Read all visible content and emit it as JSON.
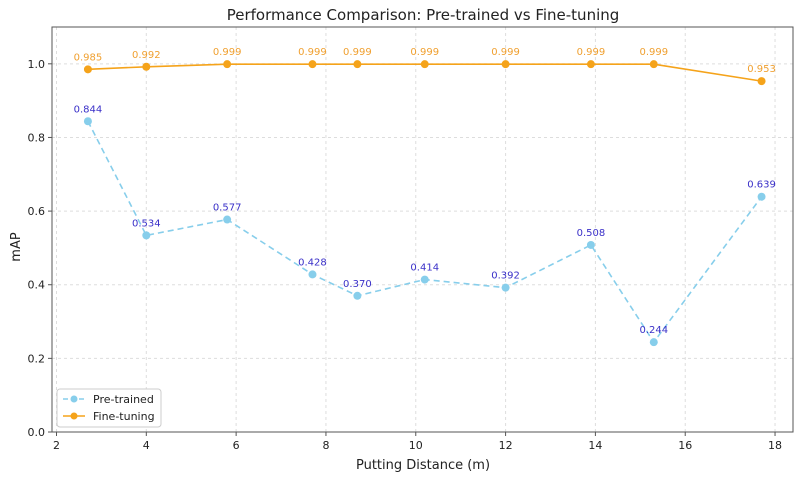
{
  "chart_data": {
    "type": "line",
    "title": "Performance Comparison: Pre-trained vs Fine-tuning",
    "xlabel": "Putting Distance (m)",
    "ylabel": "mAP",
    "xlim": [
      1.9,
      18.4
    ],
    "ylim": [
      0,
      1.1
    ],
    "xticks": [
      2,
      4,
      6,
      8,
      10,
      12,
      14,
      16,
      18
    ],
    "xtick_labels": [
      "2",
      "4",
      "6",
      "8",
      "10",
      "12",
      "14",
      "16",
      "18"
    ],
    "yticks": [
      0,
      0.2,
      0.4,
      0.6,
      0.8,
      1.0
    ],
    "ytick_labels": [
      "0.0",
      "0.2",
      "0.4",
      "0.6",
      "0.8",
      "1.0"
    ],
    "grid": true,
    "legend_placement": "bottom-left",
    "x": [
      2.7,
      4.0,
      5.8,
      7.7,
      8.7,
      10.2,
      12.0,
      13.9,
      15.3,
      17.7
    ],
    "series": [
      {
        "name": "Pre-trained",
        "color": "#87ceeb",
        "label_color": "#3a30c8",
        "style": "dashed",
        "values": [
          0.844,
          0.534,
          0.577,
          0.428,
          0.37,
          0.414,
          0.392,
          0.508,
          0.244,
          0.639
        ],
        "labels": [
          "0.844",
          "0.534",
          "0.577",
          "0.428",
          "0.370",
          "0.414",
          "0.392",
          "0.508",
          "0.244",
          "0.639"
        ]
      },
      {
        "name": "Fine-tuning",
        "color": "#f5a31a",
        "label_color": "#f0a030",
        "style": "solid",
        "values": [
          0.985,
          0.992,
          0.999,
          0.999,
          0.999,
          0.999,
          0.999,
          0.999,
          0.999,
          0.953
        ],
        "labels": [
          "0.985",
          "0.992",
          "0.999",
          "0.999",
          "0.999",
          "0.999",
          "0.999",
          "0.999",
          "0.999",
          "0.953"
        ]
      }
    ]
  }
}
